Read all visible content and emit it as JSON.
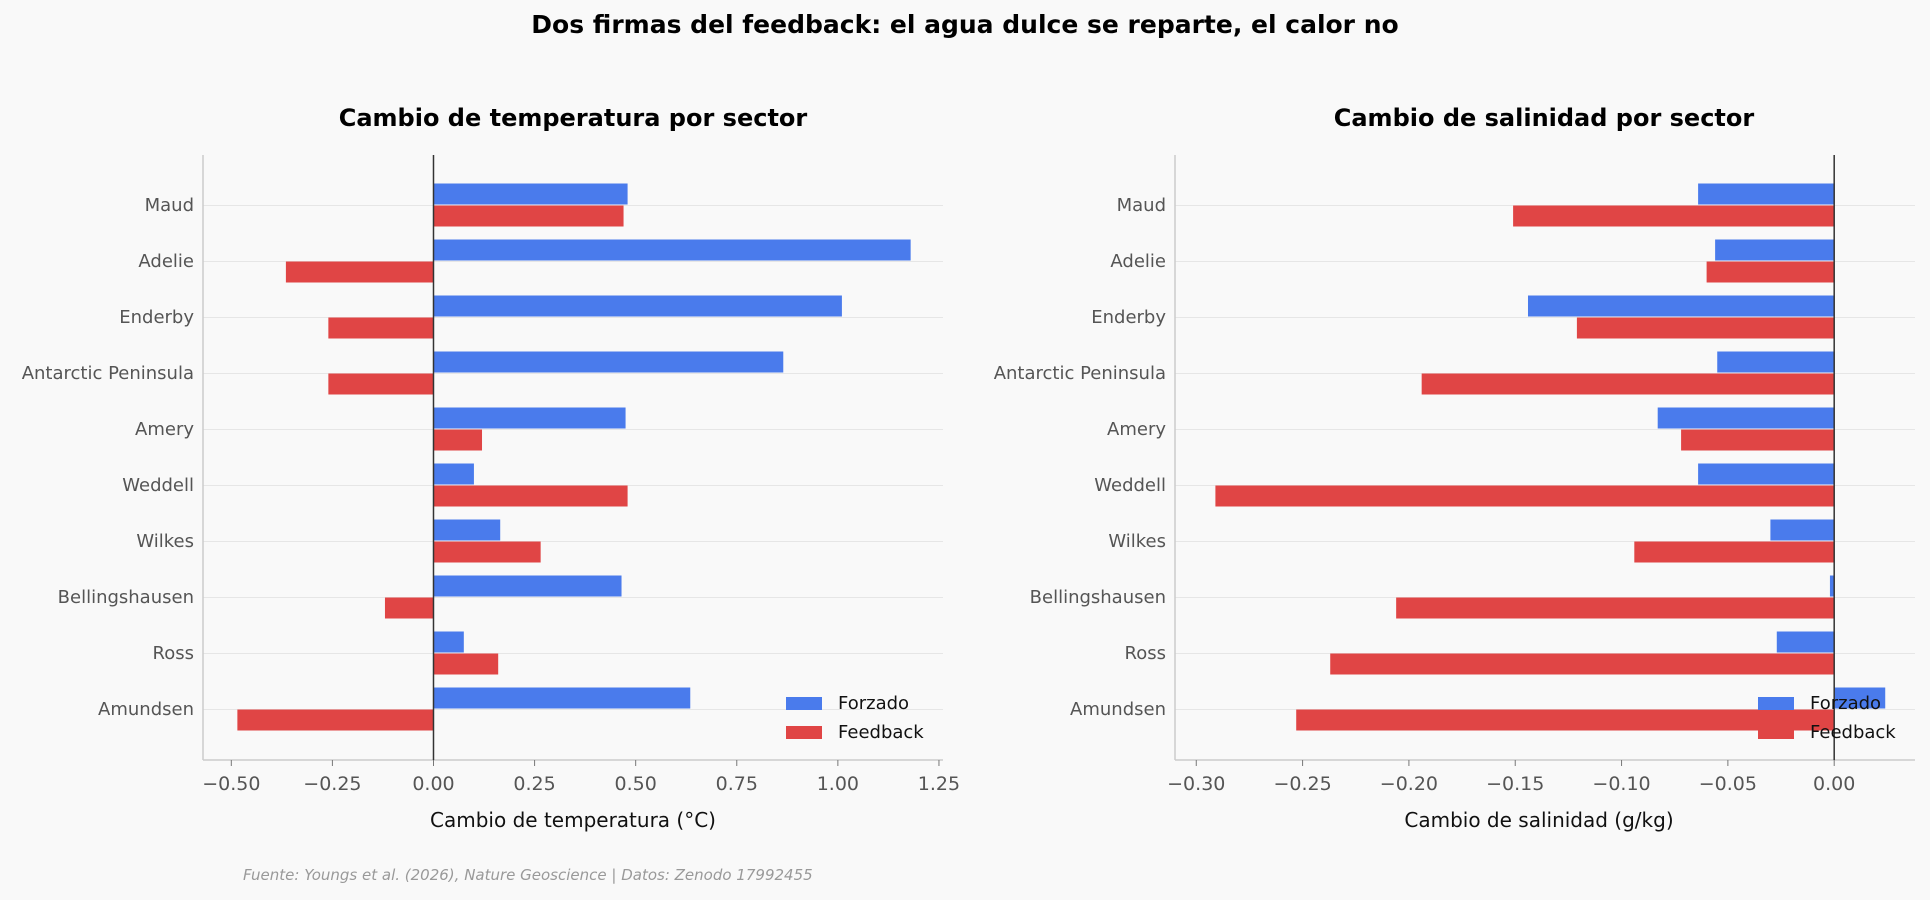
{
  "figure": {
    "suptitle": "Dos firmas del feedback: el agua dulce se reparte, el calor no",
    "source": "Fuente: Youngs et al. (2026), Nature Geoscience | Datos: Zenodo 17992455"
  },
  "colors": {
    "forzado": "#4a7bec",
    "feedback": "#e04545",
    "background": "#f9f9f9",
    "spine": "#cccccc",
    "zero_line": "#333333",
    "grid": "#e6e6e6",
    "tick_text": "#555555"
  },
  "chart_data": [
    {
      "type": "bar",
      "orientation": "horizontal",
      "title": "Cambio de temperatura por sector",
      "xlabel": "Cambio de temperatura (°C)",
      "ylabel": "",
      "xlim": [
        -0.57,
        1.26
      ],
      "xticks": [
        -0.5,
        -0.25,
        0.0,
        0.25,
        0.5,
        0.75,
        1.0,
        1.25
      ],
      "xtick_labels": [
        "−0.50",
        "−0.25",
        "0.00",
        "0.25",
        "0.50",
        "0.75",
        "1.00",
        "1.25"
      ],
      "categories": [
        "Maud",
        "Adelie",
        "Enderby",
        "Antarctic Peninsula",
        "Amery",
        "Weddell",
        "Wilkes",
        "Bellingshausen",
        "Ross",
        "Amundsen"
      ],
      "series": [
        {
          "name": "Forzado",
          "values": [
            0.48,
            1.18,
            1.01,
            0.865,
            0.475,
            0.1,
            0.165,
            0.465,
            0.075,
            0.635
          ]
        },
        {
          "name": "Feedback",
          "values": [
            0.47,
            -0.365,
            -0.26,
            -0.26,
            0.12,
            0.48,
            0.265,
            -0.12,
            0.16,
            -0.485
          ]
        }
      ],
      "legend": {
        "placement": "lower right",
        "entries": [
          "Forzado",
          "Feedback"
        ]
      },
      "grid": "y-only"
    },
    {
      "type": "bar",
      "orientation": "horizontal",
      "title": "Cambio de salinidad por sector",
      "xlabel": "Cambio de salinidad (g/kg)",
      "ylabel": "",
      "xlim": [
        -0.31,
        0.038
      ],
      "xticks": [
        -0.3,
        -0.25,
        -0.2,
        -0.15,
        -0.1,
        -0.05,
        0.0
      ],
      "xtick_labels": [
        "−0.30",
        "−0.25",
        "−0.20",
        "−0.15",
        "−0.10",
        "−0.05",
        "0.00"
      ],
      "categories": [
        "Maud",
        "Adelie",
        "Enderby",
        "Antarctic Peninsula",
        "Amery",
        "Weddell",
        "Wilkes",
        "Bellingshausen",
        "Ross",
        "Amundsen"
      ],
      "series": [
        {
          "name": "Forzado",
          "values": [
            -0.064,
            -0.056,
            -0.144,
            -0.055,
            -0.083,
            -0.064,
            -0.03,
            -0.002,
            -0.027,
            0.024
          ]
        },
        {
          "name": "Feedback",
          "values": [
            -0.151,
            -0.06,
            -0.121,
            -0.194,
            -0.072,
            -0.291,
            -0.094,
            -0.206,
            -0.237,
            -0.253
          ]
        }
      ],
      "legend": {
        "placement": "lower right",
        "entries": [
          "Forzado",
          "Feedback"
        ]
      },
      "grid": "y-only"
    }
  ]
}
